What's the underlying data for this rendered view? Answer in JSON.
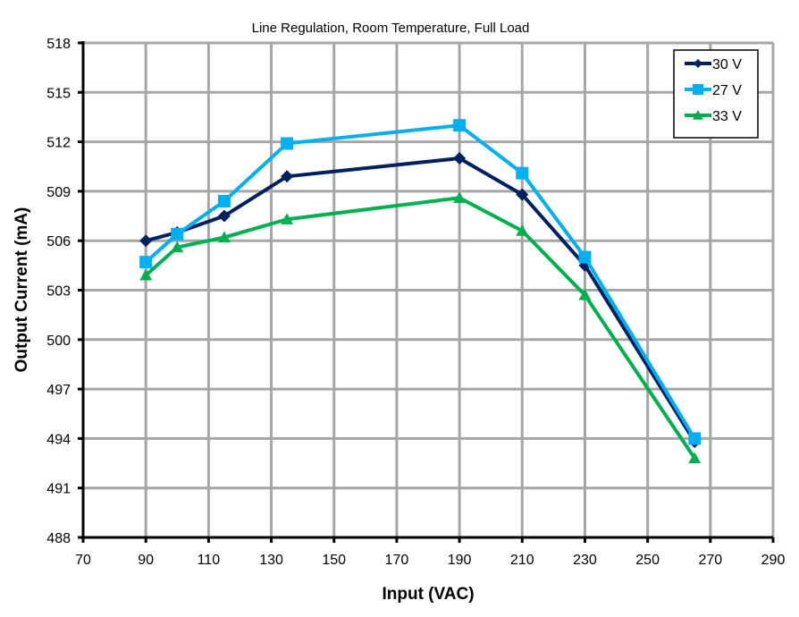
{
  "chart_data": {
    "type": "line",
    "title": "Line Regulation, Room Temperature, Full Load",
    "xlabel": "Input (VAC)",
    "ylabel": "Output Current (mA)",
    "xlim": [
      70,
      290
    ],
    "ylim": [
      488,
      518
    ],
    "xticks": [
      70,
      90,
      110,
      130,
      150,
      170,
      190,
      210,
      230,
      250,
      270,
      290
    ],
    "yticks": [
      488,
      491,
      494,
      497,
      500,
      503,
      506,
      509,
      512,
      515,
      518
    ],
    "grid": true,
    "legend_position": "top-right",
    "series": [
      {
        "name": "30 V",
        "color": "#002060",
        "marker": "diamond",
        "x": [
          90,
          100,
          115,
          135,
          190,
          210,
          230,
          265
        ],
        "values": [
          506.0,
          506.5,
          507.5,
          509.9,
          511.0,
          508.8,
          504.5,
          493.8
        ]
      },
      {
        "name": "27 V",
        "color": "#00B0F0",
        "marker": "square",
        "x": [
          90,
          100,
          115,
          135,
          190,
          210,
          230,
          265
        ],
        "values": [
          504.7,
          506.4,
          508.4,
          511.9,
          513.0,
          510.1,
          505.0,
          494.0
        ]
      },
      {
        "name": "33 V",
        "color": "#00B050",
        "marker": "triangle",
        "x": [
          90,
          100,
          115,
          135,
          190,
          210,
          230,
          265
        ],
        "values": [
          503.9,
          505.6,
          506.2,
          507.3,
          508.6,
          506.6,
          502.7,
          492.8
        ]
      }
    ]
  }
}
